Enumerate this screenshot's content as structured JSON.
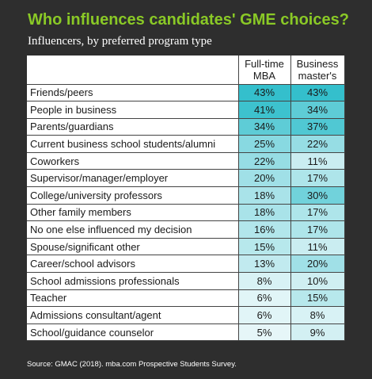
{
  "title": "Who influences candidates' GME choices?",
  "subtitle": "Influencers, by preferred program type",
  "source": "Source: GMAC (2018). mba.com Prospective Students Survey.",
  "colors": {
    "title": "#8ac926",
    "background": "#2e2e2e",
    "heat_low": "#e6f6f8",
    "heat_high": "#34bfcc"
  },
  "chart_data": {
    "type": "heatmap",
    "columns": [
      {
        "line1": "Full-time",
        "line2": "MBA"
      },
      {
        "line1": "Business",
        "line2": "master's"
      }
    ],
    "rows": [
      {
        "label": "Friends/peers",
        "values": [
          43,
          43
        ]
      },
      {
        "label": "People in business",
        "values": [
          41,
          34
        ]
      },
      {
        "label": "Parents/guardians",
        "values": [
          34,
          37
        ]
      },
      {
        "label": "Current business school students/alumni",
        "values": [
          25,
          22
        ]
      },
      {
        "label": "Coworkers",
        "values": [
          22,
          11
        ]
      },
      {
        "label": "Supervisor/manager/employer",
        "values": [
          20,
          17
        ]
      },
      {
        "label": "College/university professors",
        "values": [
          18,
          30
        ]
      },
      {
        "label": "Other family members",
        "values": [
          18,
          17
        ]
      },
      {
        "label": "No one else influenced my decision",
        "values": [
          16,
          17
        ]
      },
      {
        "label": "Spouse/significant other",
        "values": [
          15,
          11
        ]
      },
      {
        "label": "Career/school advisors",
        "values": [
          13,
          20
        ]
      },
      {
        "label": "School admissions professionals",
        "values": [
          8,
          10
        ]
      },
      {
        "label": "Teacher",
        "values": [
          6,
          15
        ]
      },
      {
        "label": "Admissions consultant/agent",
        "values": [
          6,
          8
        ]
      },
      {
        "label": "School/guidance counselor",
        "values": [
          5,
          9
        ]
      }
    ],
    "value_suffix": "%",
    "value_range": [
      5,
      43
    ]
  }
}
